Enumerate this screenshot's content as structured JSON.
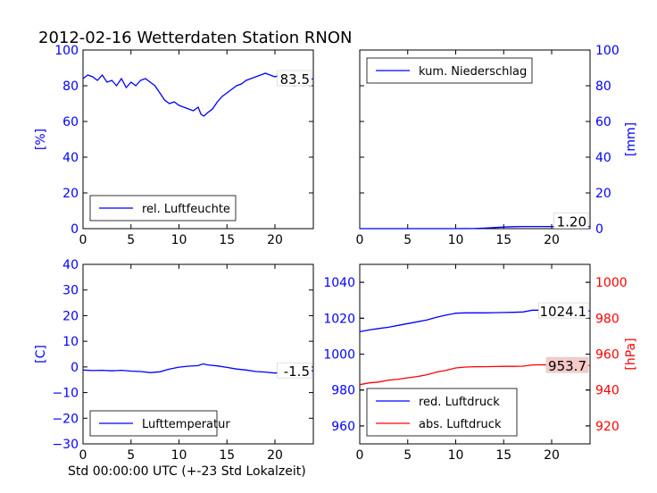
{
  "title": "2012-02-16 Wetterdaten Station RNON",
  "xlabel": "Std 00:00:00 UTC (+-23 Std Lokalzeit)",
  "colors": {
    "primary": "#0000ff",
    "secondary": "#ff0000",
    "axis": "#000000"
  },
  "chart_data": [
    {
      "type": "line",
      "id": "humidity",
      "ylabel": "[%]",
      "xlim": [
        0,
        24
      ],
      "ylim": [
        0,
        100
      ],
      "xticks": [
        "0",
        "5",
        "10",
        "15",
        "20"
      ],
      "yticks": [
        "0",
        "20",
        "40",
        "60",
        "80",
        "100"
      ],
      "ytick_side": "left",
      "legend": "bottom-left",
      "last_value": "83.5",
      "series": [
        {
          "name": "rel. Luftfeuchte",
          "x": [
            0,
            0.5,
            1,
            1.5,
            2,
            2.5,
            3,
            3.5,
            4,
            4.5,
            5,
            5.5,
            6,
            6.5,
            7,
            7.5,
            8,
            8.5,
            9,
            9.5,
            10,
            10.5,
            11,
            11.5,
            12,
            12.3,
            12.6,
            13,
            13.5,
            14,
            14.5,
            15,
            15.5,
            16,
            16.5,
            17,
            17.5,
            18,
            18.5,
            19,
            19.5,
            20,
            20.5,
            21,
            21.5,
            22,
            22.5,
            23,
            23.5,
            24
          ],
          "y": [
            84,
            86,
            85,
            83,
            86,
            82,
            83,
            80,
            84,
            79,
            82,
            80,
            83,
            84,
            82,
            80,
            76,
            72,
            70,
            71,
            69,
            68,
            67,
            66,
            68,
            64,
            63,
            65,
            67,
            71,
            74,
            76,
            78,
            80,
            81,
            83,
            84,
            85,
            86,
            87,
            86,
            85,
            86,
            84,
            82,
            80,
            81,
            83,
            83,
            84
          ]
        }
      ]
    },
    {
      "type": "line",
      "id": "precipitation",
      "ylabel": "[mm]",
      "xlim": [
        0,
        24
      ],
      "ylim": [
        0,
        100
      ],
      "xticks": [
        "0",
        "5",
        "10",
        "15",
        "20"
      ],
      "yticks": [
        "0",
        "20",
        "40",
        "60",
        "80",
        "100"
      ],
      "ytick_side": "right",
      "legend": "top-left",
      "last_value": "1.20",
      "series": [
        {
          "name": "kum. Niederschlag",
          "x": [
            0,
            10,
            12,
            13,
            14,
            15,
            16,
            17,
            18,
            19,
            20,
            21,
            22,
            23,
            24
          ],
          "y": [
            0,
            0,
            0.1,
            0.3,
            0.6,
            0.9,
            1.1,
            1.2,
            1.2,
            1.2,
            1.2,
            1.2,
            1.2,
            1.2,
            1.2
          ]
        }
      ]
    },
    {
      "type": "line",
      "id": "temperature",
      "ylabel": "[C]",
      "xlim": [
        0,
        24
      ],
      "ylim": [
        -30,
        40
      ],
      "xticks": [
        "0",
        "5",
        "10",
        "15",
        "20"
      ],
      "yticks": [
        "−30",
        "−20",
        "−10",
        "0",
        "10",
        "20",
        "30",
        "40"
      ],
      "ytick_side": "left",
      "legend": "bottom-left",
      "last_value": "-1.5",
      "series": [
        {
          "name": "Lufttemperatur",
          "x": [
            0,
            1,
            2,
            3,
            4,
            5,
            6,
            7,
            8,
            9,
            10,
            11,
            12,
            12.5,
            13,
            14,
            15,
            16,
            17,
            18,
            19,
            20,
            21,
            22,
            23,
            24
          ],
          "y": [
            -1.2,
            -1.4,
            -1.3,
            -1.5,
            -1.3,
            -1.6,
            -1.8,
            -2.2,
            -1.9,
            -0.8,
            -0.1,
            0.3,
            0.5,
            1.2,
            0.8,
            0.4,
            -0.2,
            -0.8,
            -1.2,
            -1.8,
            -2.0,
            -2.4,
            -2.0,
            -1.7,
            -1.6,
            -1.5
          ]
        }
      ]
    },
    {
      "type": "line",
      "id": "pressure",
      "xlim": [
        0,
        24
      ],
      "xticks": [
        "0",
        "5",
        "10",
        "15",
        "20"
      ],
      "left_axis": {
        "ylim": [
          950,
          1050
        ],
        "yticks": [
          "960",
          "980",
          "1000",
          "1020",
          "1040"
        ]
      },
      "right_axis": {
        "ylabel": "[hPa]",
        "ylim": [
          910,
          1010
        ],
        "yticks": [
          "920",
          "940",
          "960",
          "980",
          "1000"
        ]
      },
      "legend": "bottom-left",
      "series": [
        {
          "name": "red. Luftdruck",
          "axis": "left",
          "last_value": "1024.1",
          "x": [
            0,
            1,
            2,
            3,
            4,
            5,
            6,
            7,
            8,
            9,
            10,
            11,
            12,
            13,
            14,
            15,
            16,
            17,
            18,
            19,
            20,
            21,
            22,
            23,
            24
          ],
          "y": [
            1012.5,
            1013.5,
            1014.3,
            1015,
            1016,
            1017,
            1018,
            1019,
            1020.5,
            1021.8,
            1022.8,
            1023,
            1023,
            1023,
            1023.1,
            1023.2,
            1023.3,
            1023.5,
            1024.5,
            1024.5,
            1024.2,
            1024.1,
            1024.1,
            1024.1,
            1024.1
          ]
        },
        {
          "name": "abs. Luftdruck",
          "axis": "right",
          "last_value": "953.7",
          "x": [
            0,
            1,
            2,
            3,
            4,
            5,
            6,
            7,
            8,
            9,
            10,
            11,
            12,
            13,
            14,
            15,
            16,
            17,
            18,
            19,
            20,
            21,
            22,
            23,
            24
          ],
          "y": [
            943,
            944,
            944.5,
            945.5,
            946,
            946.8,
            947.5,
            948.5,
            950,
            951,
            952.3,
            952.8,
            953,
            953,
            953.1,
            953.2,
            953.2,
            953.3,
            954,
            954.1,
            953.9,
            953.7,
            953.7,
            953.7,
            953.7
          ]
        }
      ]
    }
  ]
}
